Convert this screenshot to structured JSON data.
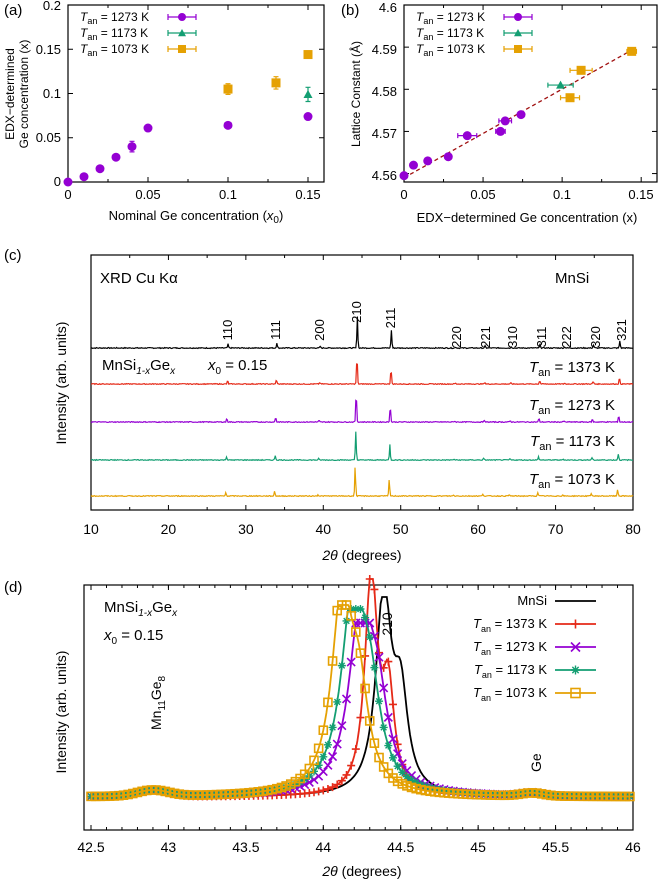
{
  "colors": {
    "c1373": "#e52a18",
    "c1273": "#9400d3",
    "c1173": "#139e72",
    "c1073": "#e5a103",
    "mnsi": "#000000",
    "fit": "#a01010"
  },
  "chart_data": [
    {
      "panel": "(a)",
      "type": "scatter",
      "xlabel_pre": "Nominal Ge concentration (",
      "xlabel_var": "x",
      "xlabel_sub": "0",
      "xlabel_post": ")",
      "ylabel_line1": "EDX−determined",
      "ylabel_line2": "Ge concentration (x)",
      "xlim": [
        0,
        0.16
      ],
      "ylim": [
        0,
        0.2
      ],
      "xticks": [
        "0",
        "0.05",
        "0.1",
        "0.15"
      ],
      "yticks": [
        "0",
        "0.05",
        "0.1",
        "0.15",
        "0.2"
      ],
      "series": [
        {
          "name": "T_an = 1273 K",
          "label_main": "T",
          "label_sub": "an",
          "label_rest": " = 1273 K",
          "marker": "circle",
          "color_key": "c1273",
          "points": [
            [
              0,
              0
            ],
            [
              0.01,
              0.006
            ],
            [
              0.02,
              0.015
            ],
            [
              0.03,
              0.028
            ],
            [
              0.04,
              0.04
            ],
            [
              0.05,
              0.061
            ],
            [
              0.1,
              0.064
            ],
            [
              0.15,
              0.074
            ]
          ],
          "yerr": [
            0,
            0,
            0,
            0,
            0.006,
            0.003,
            0,
            0
          ]
        },
        {
          "name": "T_an = 1173 K",
          "label_main": "T",
          "label_sub": "an",
          "label_rest": " = 1173 K",
          "marker": "triangle",
          "color_key": "c1173",
          "points": [
            [
              0.15,
              0.099
            ]
          ],
          "yerr": [
            0.008
          ]
        },
        {
          "name": "T_an = 1073 K",
          "label_main": "T",
          "label_sub": "an",
          "label_rest": " = 1073 K",
          "marker": "square",
          "color_key": "c1073",
          "points": [
            [
              0.1,
              0.105
            ],
            [
              0.13,
              0.112
            ],
            [
              0.15,
              0.144
            ]
          ],
          "yerr": [
            0.006,
            0.007,
            0.004
          ]
        }
      ]
    },
    {
      "panel": "(b)",
      "type": "scatter",
      "xlabel": "EDX−determined Ge concentration (x)",
      "ylabel": "Lattice Constant (Å)",
      "xlim": [
        0,
        0.16
      ],
      "ylim": [
        4.558,
        4.6
      ],
      "xticks": [
        "0",
        "0.05",
        "0.1",
        "0.15"
      ],
      "yticks": [
        "4.56",
        "4.57",
        "4.58",
        "4.59",
        "4.6"
      ],
      "fit_line": {
        "x": [
          0,
          0.145
        ],
        "y": [
          4.559,
          4.5895
        ]
      },
      "series": [
        {
          "name": "T_an = 1273 K",
          "label_main": "T",
          "label_sub": "an",
          "label_rest": " = 1273 K",
          "marker": "circle",
          "color_key": "c1273",
          "points": [
            [
              0,
              4.5595
            ],
            [
              0.006,
              4.562
            ],
            [
              0.015,
              4.563
            ],
            [
              0.028,
              4.564
            ],
            [
              0.04,
              4.569
            ],
            [
              0.061,
              4.57
            ],
            [
              0.064,
              4.5725
            ],
            [
              0.074,
              4.574
            ]
          ],
          "xerr": [
            0,
            0,
            0,
            0.002,
            0.006,
            0.003,
            0.004,
            0
          ]
        },
        {
          "name": "T_an = 1173 K",
          "label_main": "T",
          "label_sub": "an",
          "label_rest": " = 1173 K",
          "marker": "triangle",
          "color_key": "c1173",
          "points": [
            [
              0.099,
              4.581
            ]
          ],
          "xerr": [
            0.008
          ]
        },
        {
          "name": "T_an = 1073 K",
          "label_main": "T",
          "label_sub": "an",
          "label_rest": " = 1073 K",
          "marker": "square",
          "color_key": "c1073",
          "points": [
            [
              0.105,
              4.578
            ],
            [
              0.112,
              4.5845
            ],
            [
              0.144,
              4.589
            ]
          ],
          "xerr": [
            0.006,
            0.007,
            0.003
          ]
        }
      ]
    },
    {
      "panel": "(c)",
      "type": "line",
      "xlabel_var": "2θ",
      "xlabel_rest": " (degrees)",
      "ylabel": "Intensity (arb. units)",
      "xlim": [
        10,
        80
      ],
      "xticks": [
        "10",
        "20",
        "30",
        "40",
        "50",
        "60",
        "70",
        "80"
      ],
      "probe": "XRD Cu Kα",
      "mnsi_label": "MnSi",
      "formula_main": "MnSi",
      "formula_sub1": "1-x",
      "formula_mid": "Ge",
      "formula_sub2": "x",
      "x0_label": "x",
      "x0_sub": "0",
      "x0_value": " = 0.15",
      "peaks": [
        {
          "label": "110",
          "pos": 27.7,
          "height": 0.12
        },
        {
          "label": "111",
          "pos": 34.0,
          "height": 0.16
        },
        {
          "label": "200",
          "pos": 39.6,
          "height": 0.05
        },
        {
          "label": "210",
          "pos": 44.4,
          "height": 1.0
        },
        {
          "label": "211",
          "pos": 48.8,
          "height": 0.55
        },
        {
          "label": "220",
          "pos": 57.1,
          "height": 0.03
        },
        {
          "label": "221",
          "pos": 60.9,
          "height": 0.06
        },
        {
          "label": "310",
          "pos": 64.3,
          "height": 0.04
        },
        {
          "label": "311",
          "pos": 68.0,
          "height": 0.12
        },
        {
          "label": "222",
          "pos": 71.2,
          "height": 0.03
        },
        {
          "label": "320",
          "pos": 74.9,
          "height": 0.09
        },
        {
          "label": "321",
          "pos": 78.3,
          "height": 0.22
        }
      ],
      "series": [
        {
          "name": "MnSi",
          "color_key": "mnsi",
          "shift": 0.0
        },
        {
          "name": "T_an = 1373 K",
          "label_main": "T",
          "label_sub": "an",
          "label_rest": " = 1373 K",
          "color_key": "c1373",
          "shift": -0.05
        },
        {
          "name": "T_an = 1273 K",
          "label_main": "T",
          "label_sub": "an",
          "label_rest": " = 1273 K",
          "color_key": "c1273",
          "shift": -0.15
        },
        {
          "name": "T_an = 1173 K",
          "label_main": "T",
          "label_sub": "an",
          "label_rest": " = 1173 K",
          "color_key": "c1173",
          "shift": -0.2
        },
        {
          "name": "T_an = 1073 K",
          "label_main": "T",
          "label_sub": "an",
          "label_rest": " = 1073 K",
          "color_key": "c1073",
          "shift": -0.28
        }
      ]
    },
    {
      "panel": "(d)",
      "type": "line",
      "xlabel_var": "2θ",
      "xlabel_rest": " (degrees)",
      "ylabel": "Intensity (arb. units)",
      "xlim": [
        42.5,
        46
      ],
      "xticks": [
        "42.5",
        "43",
        "43.5",
        "44",
        "44.5",
        "45",
        "45.5",
        "46"
      ],
      "formula_main": "MnSi",
      "formula_sub1": "1-x",
      "formula_mid": "Ge",
      "formula_sub2": "x",
      "x0_label": "x",
      "x0_sub": "0",
      "x0_value": " = 0.15",
      "peak_label": "210",
      "annotations": [
        {
          "text_main": "Mn",
          "text_sub": "11",
          "text_mid": "Ge",
          "text_sub2": "8",
          "x": 42.9
        },
        {
          "text_main": "Ge",
          "x": 45.35
        }
      ],
      "series": [
        {
          "name": "MnSi",
          "color_key": "mnsi",
          "marker": "none",
          "center": 44.39,
          "height": 1.0,
          "width": 0.06
        },
        {
          "name": "T_an = 1373 K",
          "label_main": "T",
          "label_sub": "an",
          "label_rest": " = 1373 K",
          "color_key": "c1373",
          "marker": "plus",
          "center": 44.31,
          "height": 1.09,
          "width": 0.05
        },
        {
          "name": "T_an = 1273 K",
          "label_main": "T",
          "label_sub": "an",
          "label_rest": " = 1273 K",
          "color_key": "c1273",
          "marker": "cross",
          "center": 44.24,
          "height": 0.87,
          "width": 0.09
        },
        {
          "name": "T_an = 1173 K",
          "label_main": "T",
          "label_sub": "an",
          "label_rest": " = 1173 K",
          "color_key": "c1173",
          "marker": "star",
          "center": 44.19,
          "height": 0.94,
          "width": 0.09
        },
        {
          "name": "T_an = 1073 K",
          "label_main": "T",
          "label_sub": "an",
          "label_rest": " = 1073 K",
          "color_key": "c1073",
          "marker": "opensquare",
          "center": 44.12,
          "height": 0.96,
          "width": 0.08
        }
      ]
    }
  ]
}
